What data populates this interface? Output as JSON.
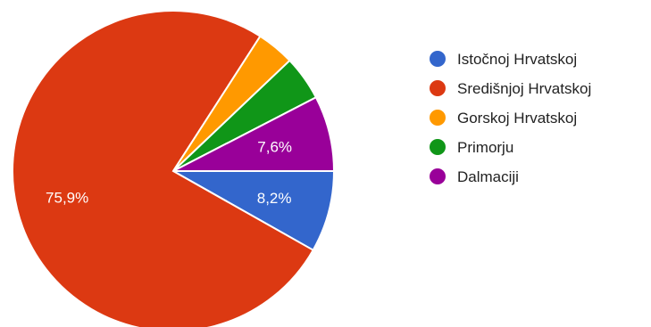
{
  "chart_data": {
    "type": "pie",
    "slices": [
      {
        "label": "Istočnoj Hrvatskoj",
        "value": 8.2,
        "color": "#3366cc",
        "value_label": "8,2%"
      },
      {
        "label": "Središnjoj Hrvatskoj",
        "value": 75.9,
        "color": "#dc3912",
        "value_label": "75,9%"
      },
      {
        "label": "Gorskoj Hrvatskoj",
        "value": 3.8,
        "color": "#ff9900",
        "value_label": ""
      },
      {
        "label": "Primorju",
        "value": 4.5,
        "color": "#109618",
        "value_label": ""
      },
      {
        "label": "Dalmaciji",
        "value": 7.6,
        "color": "#990099",
        "value_label": "7,6%"
      }
    ],
    "start_position": "3 o'clock",
    "direction": "clockwise",
    "legend_position": "right"
  }
}
